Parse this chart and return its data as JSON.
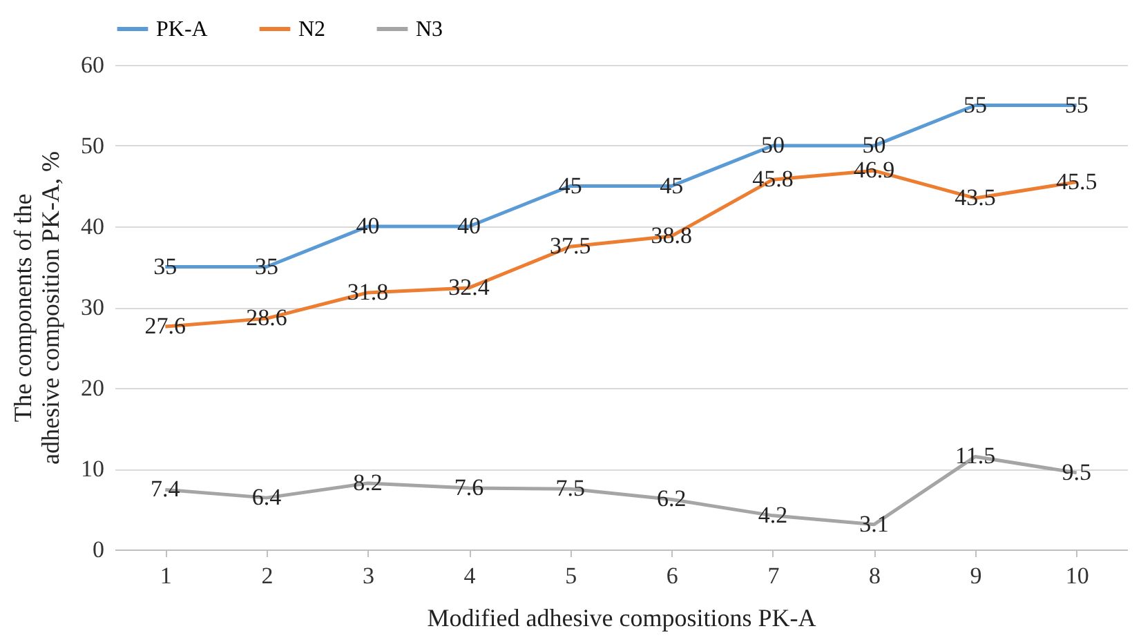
{
  "chart_data": {
    "type": "line",
    "xlabel": "Modified adhesive compositions PK-A",
    "ylabel": "The components of the adhesive composition PK-A, %",
    "categories": [
      "1",
      "2",
      "3",
      "4",
      "5",
      "6",
      "7",
      "8",
      "9",
      "10"
    ],
    "series": [
      {
        "name": "PK-A",
        "color": "#5b9bd5",
        "values": [
          35,
          35,
          40,
          40,
          45,
          45,
          50,
          50,
          55,
          55
        ]
      },
      {
        "name": "N2",
        "color": "#ed7d31",
        "values": [
          27.6,
          28.6,
          31.8,
          32.4,
          37.5,
          38.8,
          45.8,
          46.9,
          43.5,
          45.5
        ]
      },
      {
        "name": "N3",
        "color": "#a5a5a5",
        "values": [
          7.4,
          6.4,
          8.2,
          7.6,
          7.5,
          6.2,
          4.2,
          3.1,
          11.5,
          9.5
        ]
      }
    ],
    "ylim": [
      0,
      60
    ],
    "yticks": [
      0,
      10,
      20,
      30,
      40,
      50,
      60
    ],
    "grid": "y",
    "legend": "top",
    "data_labels": true,
    "line_style": "solid"
  }
}
